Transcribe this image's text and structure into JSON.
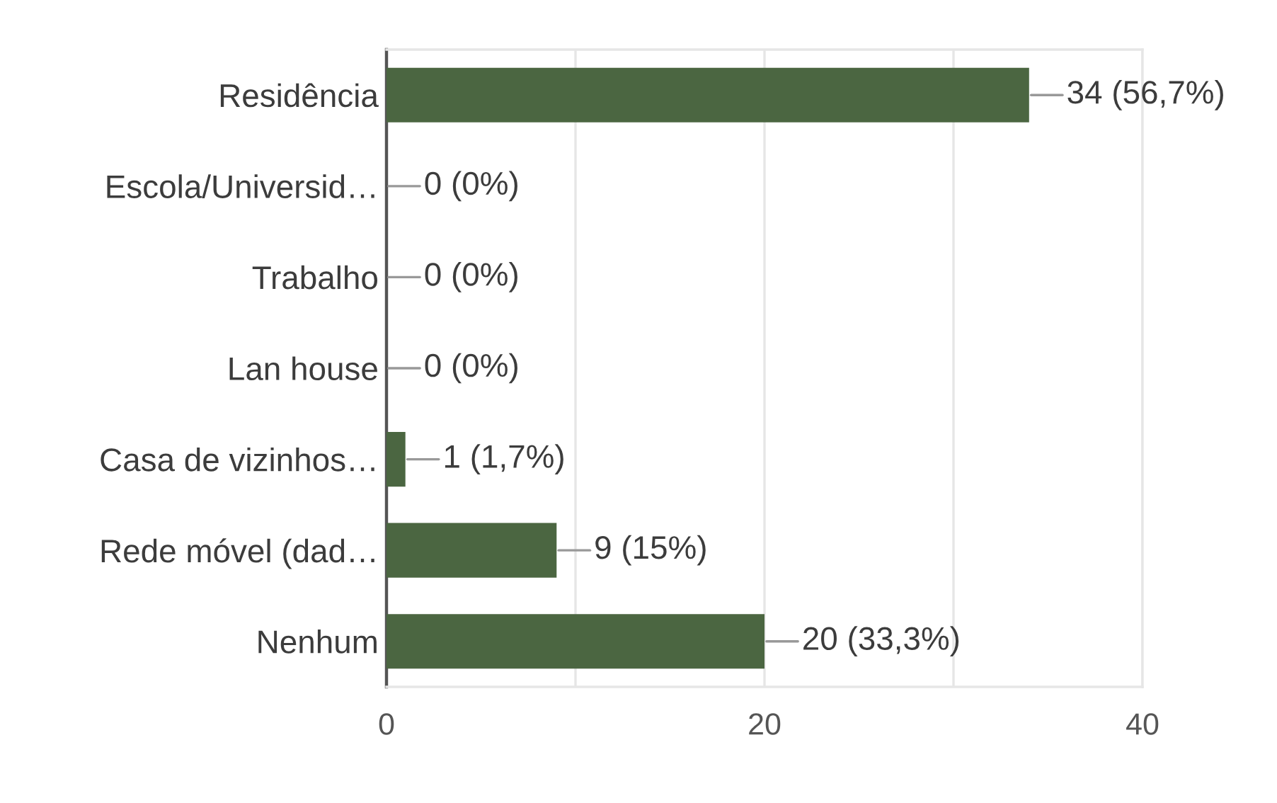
{
  "chart_data": {
    "type": "bar",
    "orientation": "horizontal",
    "categories": [
      "Residência",
      "Escola/Universid…",
      "Trabalho",
      "Lan house",
      "Casa de vizinhos…",
      "Rede móvel (dad…",
      "Nenhum"
    ],
    "values": [
      34,
      0,
      0,
      0,
      1,
      9,
      20
    ],
    "color": "#4b6641",
    "value_labels": [
      "34 (56,7%)",
      "0 (0%)",
      "0 (0%)",
      "0 (0%)",
      "1 (1,7%)",
      "9 (15%)",
      "20 (33,3%)"
    ],
    "xlim": [
      0,
      40
    ],
    "xticks": [
      0,
      {
        "value": 10,
        "label": null
      },
      20,
      {
        "value": 30,
        "label": null
      },
      40
    ],
    "grid": "x"
  }
}
